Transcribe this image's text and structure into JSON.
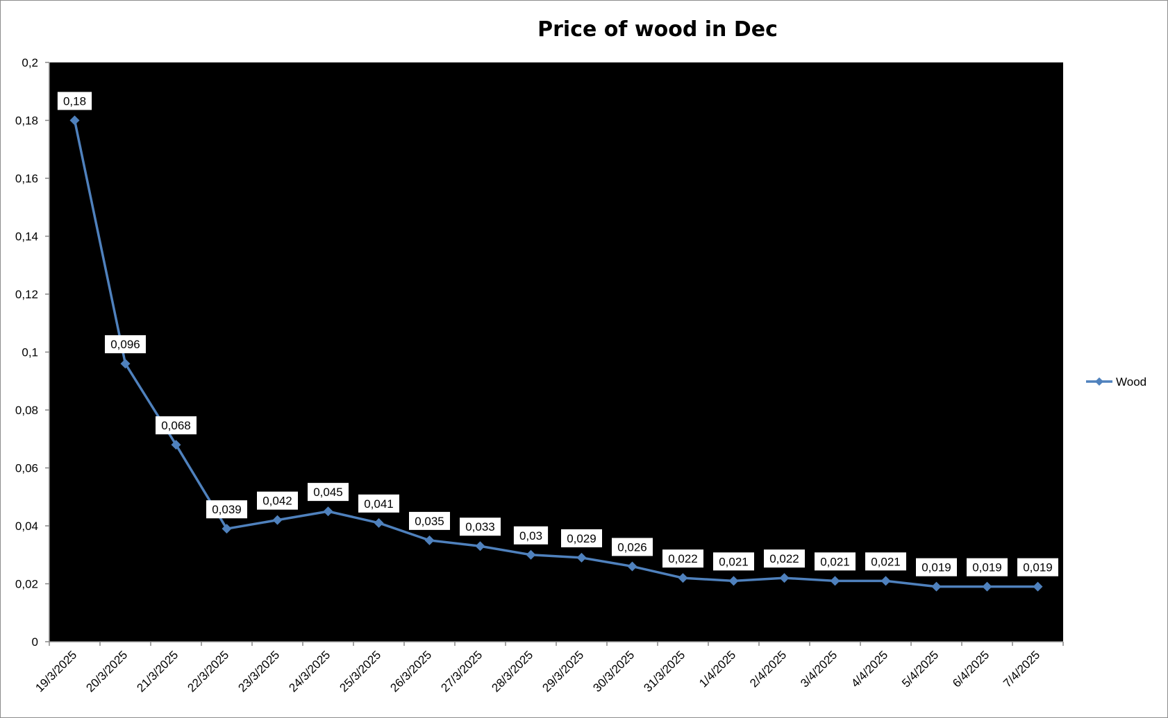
{
  "chart_data": {
    "type": "line",
    "title": "Price of wood in Dec",
    "xlabel": "",
    "ylabel": "",
    "ylim": [
      0,
      0.2
    ],
    "y_ticks": [
      "0",
      "0,02",
      "0,04",
      "0,06",
      "0,08",
      "0,1",
      "0,12",
      "0,14",
      "0,16",
      "0,18",
      "0,2"
    ],
    "y_tick_values": [
      0,
      0.02,
      0.04,
      0.06,
      0.08,
      0.1,
      0.12,
      0.14,
      0.16,
      0.18,
      0.2
    ],
    "categories": [
      "19/3/2025",
      "20/3/2025",
      "21/3/2025",
      "22/3/2025",
      "23/3/2025",
      "24/3/2025",
      "25/3/2025",
      "26/3/2025",
      "27/3/2025",
      "28/3/2025",
      "29/3/2025",
      "30/3/2025",
      "31/3/2025",
      "1/4/2025",
      "2/4/2025",
      "3/4/2025",
      "4/4/2025",
      "5/4/2025",
      "6/4/2025",
      "7/4/2025"
    ],
    "series": [
      {
        "name": "Wood",
        "color": "#4f81bd",
        "values": [
          0.18,
          0.096,
          0.068,
          0.039,
          0.042,
          0.045,
          0.041,
          0.035,
          0.033,
          0.03,
          0.029,
          0.026,
          0.022,
          0.021,
          0.022,
          0.021,
          0.021,
          0.019,
          0.019,
          0.019
        ],
        "labels": [
          "0,18",
          "0,096",
          "0,068",
          "0,039",
          "0,042",
          "0,045",
          "0,041",
          "0,035",
          "0,033",
          "0,03",
          "0,029",
          "0,026",
          "0,022",
          "0,021",
          "0,022",
          "0,021",
          "0,021",
          "0,019",
          "0,019",
          "0,019"
        ]
      }
    ],
    "plot_background": "#000000",
    "grid": false,
    "legend_position": "right"
  }
}
